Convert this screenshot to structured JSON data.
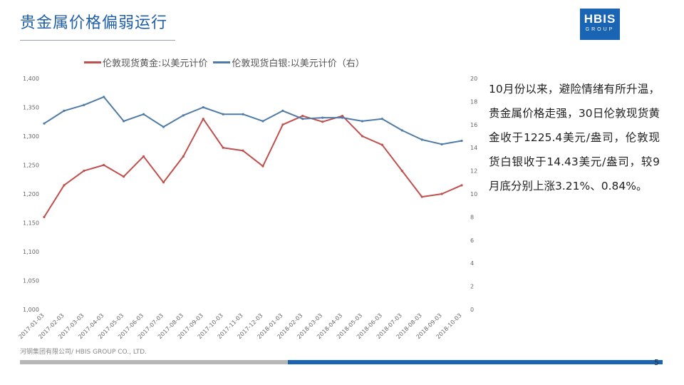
{
  "title": "贵金属价格偏弱运行",
  "logo": {
    "line1": "HBIS",
    "line2": "GROUP"
  },
  "legend": {
    "gold": "伦敦现货黄金:以美元计价",
    "silver": "伦敦现货白银:以美元计价（右）"
  },
  "colors": {
    "gold": "#c0504d",
    "silver": "#4f7ba8",
    "accent": "#1a64b4"
  },
  "note": "10月份以来，避险情绪有所升温，贵金属价格走强，30日伦敦现货黄金收于1225.4美元/盎司，伦敦现货白银收于14.43美元/盎司，较9月底分别上涨3.21%、0.84%。",
  "footer": "河钢集团有限公司/ HBIS GROUP CO., LTD.",
  "page_number": "5",
  "chart_data": {
    "type": "line",
    "x": [
      "2017-01-03",
      "2017-02-03",
      "2017-03-03",
      "2017-04-03",
      "2017-05-03",
      "2017-06-03",
      "2017-07-03",
      "2017-08-03",
      "2017-09-03",
      "2017-10-03",
      "2017-11-03",
      "2017-12-03",
      "2018-01-03",
      "2018-02-03",
      "2018-03-03",
      "2018-04-03",
      "2018-05-03",
      "2018-06-03",
      "2018-07-03",
      "2018-08-03",
      "2018-09-03",
      "2018-10-03"
    ],
    "tick_labels": [
      "2017-01-03",
      "2017-02-03",
      "2017-03-03",
      "2017-04-03",
      "2017-05-03",
      "2017-06-03",
      "2017-07-03",
      "2017-08-03",
      "2017-09-03",
      "2017-10-03",
      "2017-11-03",
      "2017-12-03",
      "2018-01-03",
      "2018-02-03",
      "2018-03-03",
      "2018-04-03",
      "2018-05-03",
      "2018-06-03",
      "2018-07-03",
      "2018-08-03",
      "2018-09-03",
      "2018-10-03"
    ],
    "series": [
      {
        "name": "伦敦现货黄金:以美元计价",
        "axis": "left",
        "values": [
          1160,
          1215,
          1240,
          1250,
          1230,
          1265,
          1220,
          1265,
          1330,
          1280,
          1275,
          1248,
          1320,
          1335,
          1325,
          1335,
          1300,
          1285,
          1240,
          1195,
          1200,
          1215
        ]
      },
      {
        "name": "伦敦现货白银:以美元计价（右）",
        "axis": "right",
        "values": [
          16.1,
          17.2,
          17.7,
          18.4,
          16.3,
          16.9,
          15.8,
          16.8,
          17.5,
          16.9,
          16.9,
          16.3,
          17.2,
          16.5,
          16.6,
          16.6,
          16.3,
          16.5,
          15.5,
          14.7,
          14.3,
          14.6
        ]
      }
    ],
    "y_left": {
      "min": 1000,
      "max": 1400,
      "ticks": [
        "1,000",
        "1,050",
        "1,100",
        "1,150",
        "1,200",
        "1,250",
        "1,300",
        "1,350",
        "1,400"
      ]
    },
    "y_right": {
      "min": 0,
      "max": 20,
      "ticks": [
        "0",
        "2",
        "4",
        "6",
        "8",
        "10",
        "12",
        "14",
        "16",
        "18",
        "20"
      ]
    },
    "legend_position": "top",
    "grid": false
  }
}
